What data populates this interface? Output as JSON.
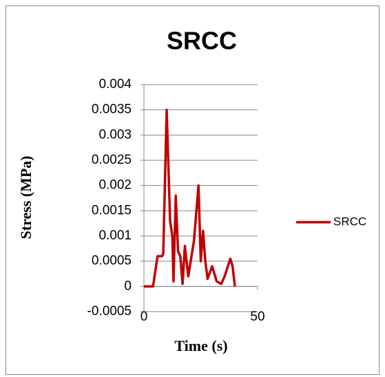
{
  "chart_data": {
    "type": "line",
    "title": "SRCC",
    "x_label": "Time (s)",
    "y_label": "Stress (MPa)",
    "x": [
      0,
      4,
      6,
      8,
      8.5,
      10,
      11.5,
      12.5,
      13,
      14,
      15,
      16,
      17,
      18,
      19.5,
      22,
      24,
      25,
      26,
      27,
      28,
      30,
      32,
      34,
      35.5,
      38,
      39,
      40
    ],
    "series": [
      {
        "name": "SRCC",
        "color": "#c00000",
        "values": [
          0,
          0,
          0.0006,
          0.0006,
          0.00065,
          0.0035,
          0.0013,
          0.001,
          0.0001,
          0.0018,
          0.0007,
          0.0006,
          5e-05,
          0.0008,
          0.0002,
          0.0009,
          0.002,
          0.0005,
          0.0011,
          0.0005,
          0.00015,
          0.0004,
          0.0001,
          5e-05,
          0.0002,
          0.00055,
          0.0004,
          0
        ]
      }
    ],
    "xlim": [
      0,
      50
    ],
    "xticks": [
      0,
      50
    ],
    "ylim": [
      -0.0005,
      0.004
    ],
    "yticks": [
      -0.0005,
      0,
      0.0005,
      0.001,
      0.0015,
      0.002,
      0.0025,
      0.003,
      0.0035,
      0.004
    ],
    "grid": true,
    "legend": "right"
  }
}
